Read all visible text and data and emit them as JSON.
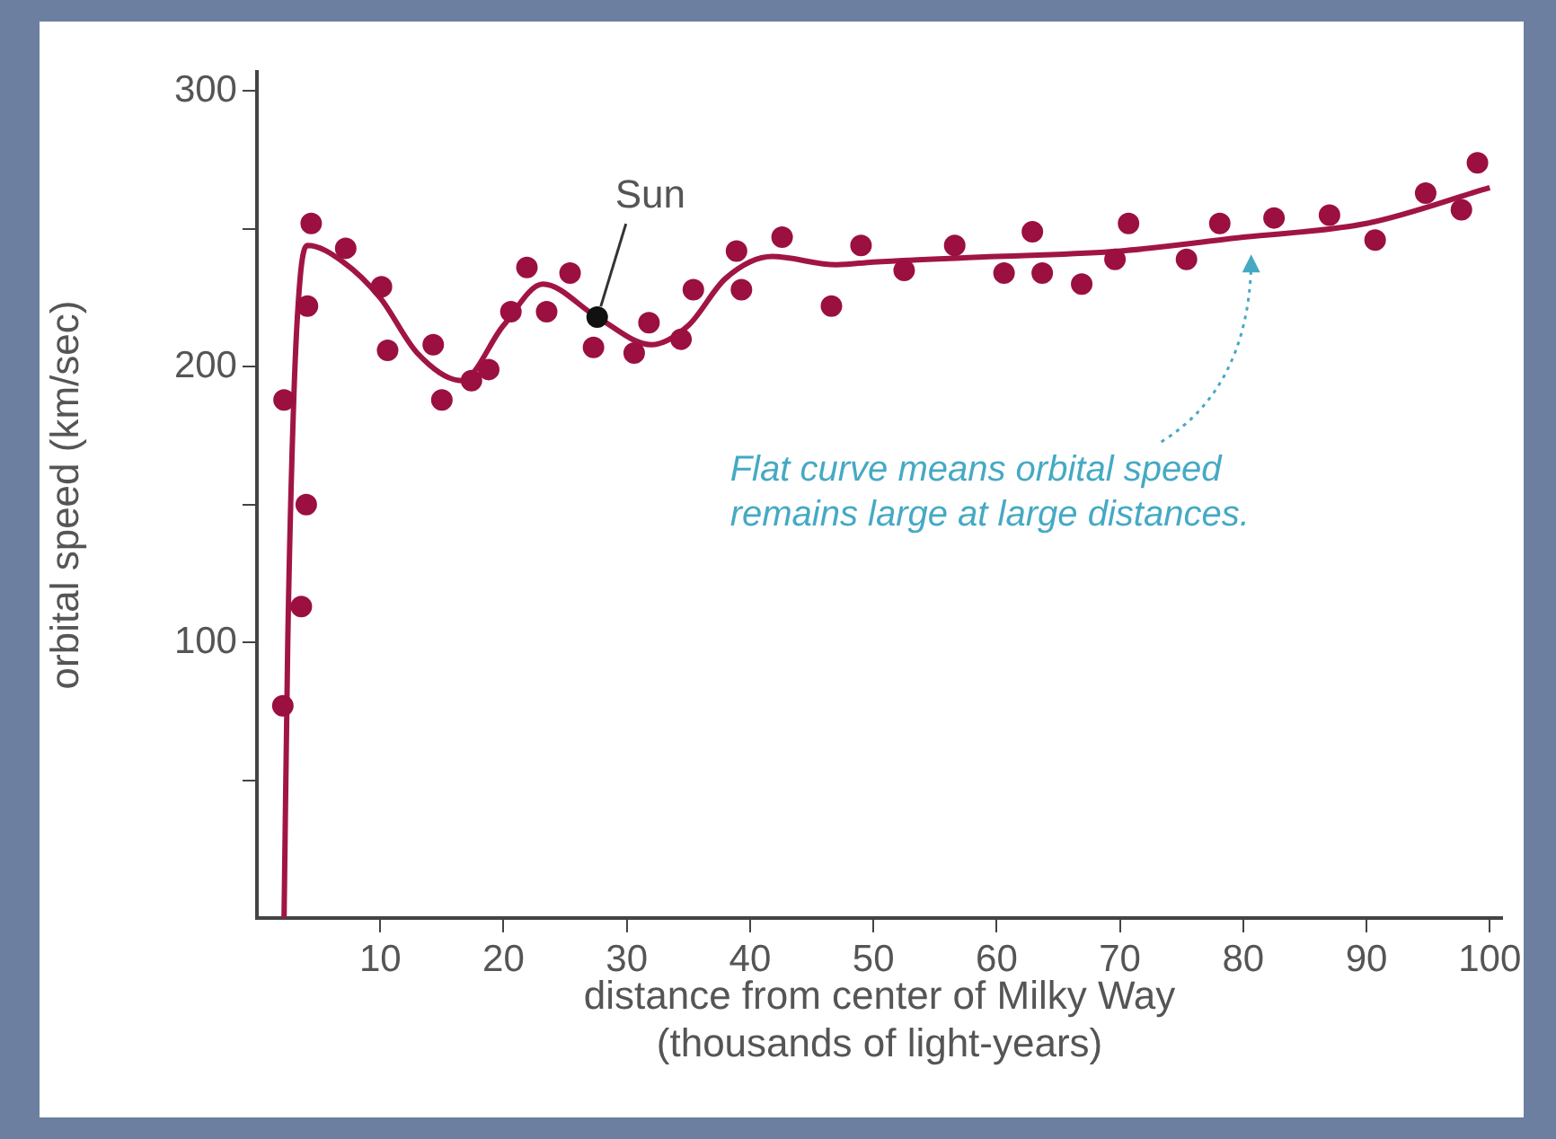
{
  "chart_data": {
    "type": "scatter",
    "xlabel": "distance from center of Milky Way\n(thousands of light-years)",
    "ylabel": "orbital speed (km/sec)",
    "xlim": [
      0,
      101
    ],
    "xticks": [
      10,
      20,
      30,
      40,
      50,
      60,
      70,
      80,
      90,
      100
    ],
    "ylim": [
      0,
      307
    ],
    "yticks": [
      {
        "value": 50,
        "label": null
      },
      100,
      {
        "value": 150,
        "label": null
      },
      200,
      {
        "value": 250,
        "label": null
      },
      300
    ],
    "grid": false,
    "legend": false,
    "marker": "circle",
    "series": [
      {
        "color": "#9b1040",
        "x": [
          2.1,
          2.2,
          3.6,
          4.0,
          4.1,
          4.4,
          7.2,
          10.1,
          10.6,
          14.3,
          15,
          17.4,
          18.8,
          20.6,
          21.9,
          23.5,
          25.4,
          27.3,
          30.6,
          31.8,
          34.4,
          35.4,
          38.9,
          39.3,
          42.6,
          46.6,
          49,
          52.5,
          56.6,
          60.6,
          62.9,
          63.7,
          66.9,
          69.6,
          70.7,
          75.4,
          78.1,
          82.5,
          87,
          90.7,
          94.8,
          97.7,
          99
        ],
        "values": [
          77,
          188,
          113,
          150,
          222,
          252,
          243,
          229,
          206,
          208,
          188,
          195,
          199,
          220,
          236,
          220,
          234,
          207,
          205,
          216,
          210,
          228,
          242,
          228,
          247,
          222,
          244,
          235,
          244,
          234,
          249,
          234,
          230,
          239,
          252,
          239,
          252,
          254,
          255,
          246,
          263,
          257,
          274
        ]
      },
      {
        "type": "line",
        "color": "#a01545",
        "marker": "none",
        "x": [
          2.2,
          2.5,
          3,
          3.5,
          4.1,
          7,
          10,
          13,
          16.6,
          20,
          23.2,
          27.6,
          32,
          35,
          38,
          41.8,
          47,
          50,
          60,
          70,
          80,
          90,
          100
        ],
        "values": [
          0,
          100,
          190,
          232,
          244,
          238,
          225,
          205,
          195,
          215,
          230,
          218,
          208,
          215,
          232,
          240,
          237,
          238,
          240,
          242,
          247,
          252,
          265
        ]
      },
      {
        "type": "scatter",
        "color": "#111111",
        "x": [
          27.6
        ],
        "values": [
          218
        ]
      }
    ],
    "annotations": [
      {
        "text": "Sun",
        "x": 27.6,
        "y": 218
      },
      "Flat curve means orbital speed\nremains large at large distances."
    ]
  }
}
